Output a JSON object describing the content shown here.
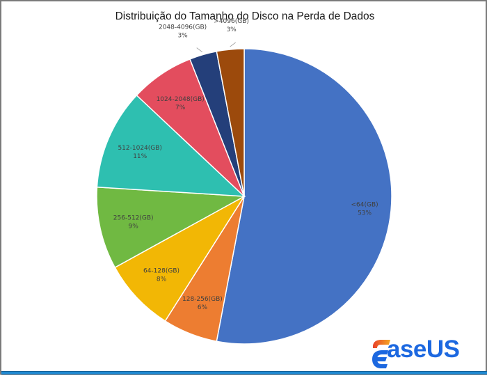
{
  "chart_data": {
    "type": "pie",
    "title": "Distribuição do Tamanho do Disco na Perda de Dados",
    "categories": [
      "<64(GB)",
      "128-256(GB)",
      "64-128(GB)",
      "256-512(GB)",
      "512-1024(GB)",
      "1024-2048(GB)",
      "2048-4096(GB)",
      ">4096(GB)"
    ],
    "values": [
      53,
      6,
      8,
      9,
      11,
      7,
      3,
      3
    ],
    "value_labels": [
      "53%",
      "6%",
      "8%",
      "9%",
      "11%",
      "7%",
      "3%",
      "3%"
    ],
    "colors": [
      "#4472c4",
      "#ed7d31",
      "#f2b705",
      "#70b942",
      "#2ebfb0",
      "#e34d5e",
      "#243f7a",
      "#9c4a0c"
    ],
    "start_angle_deg": 0,
    "direction": "clockwise",
    "data_labels": "category and percentage",
    "legend": "none"
  },
  "branding": {
    "logo_text": "aseUS",
    "logo_full": "EaseUS",
    "logo_color": "#1c68e0",
    "accent_gradient": [
      "#f5a623",
      "#e8412a"
    ]
  }
}
